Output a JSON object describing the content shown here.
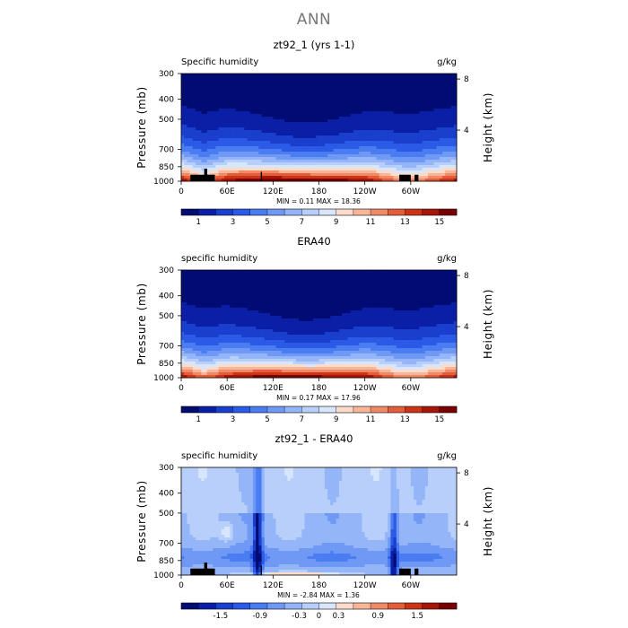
{
  "page": {
    "title": "ANN"
  },
  "colors": {
    "positive_ramp": [
      "#000c73",
      "#0a1fa6",
      "#1a3fcc",
      "#2a5ae6",
      "#4a7cf2",
      "#6f99f5",
      "#94b5f8",
      "#b8cffb",
      "#d8e6fc",
      "#fbdccb",
      "#f7b59a",
      "#f08a66",
      "#e45d3b",
      "#cc3418",
      "#a61509",
      "#7a0000"
    ],
    "difference_ramp": [
      "#000c73",
      "#0a1fa6",
      "#1a3fcc",
      "#2a5ae6",
      "#4a7cf2",
      "#6f99f5",
      "#94b5f8",
      "#b8cffb",
      "#d8e6fc",
      "#fbdccb",
      "#f7b59a",
      "#f08a66",
      "#e45d3b",
      "#cc3418",
      "#a61509",
      "#7a0000"
    ],
    "topography": "#000000"
  },
  "chart_data": [
    {
      "type": "heatmap",
      "title": "zt92_1 (yrs 1-1)",
      "left_label": "Specific humidity",
      "units": "g/kg",
      "ylabel": "Pressure (mb)",
      "ylabel_right": "Height (km)",
      "yticks": [
        "300",
        "400",
        "500",
        "700",
        "850",
        "1000"
      ],
      "yticks_right": [
        "8",
        "4"
      ],
      "xticks": [
        "0",
        "60E",
        "120E",
        "180",
        "120W",
        "60W"
      ],
      "stats": "MIN =     0.11   MAX =   18.36",
      "colorbar_labels": [
        "1",
        "3",
        "5",
        "7",
        "9",
        "11",
        "13",
        "15"
      ],
      "colorbar_range": [
        0,
        16
      ],
      "field": "positive",
      "has_topography": true,
      "surface_q_by_longitude": {
        "0": 15.5,
        "30": 12.0,
        "60": 15.5,
        "120": 17.0,
        "180": 16.5,
        "240": 15.5,
        "280": 12.5,
        "300": 11.5,
        "360": 15.0
      }
    },
    {
      "type": "heatmap",
      "title": "ERA40",
      "left_label": "specific humidity",
      "units": "g/kg",
      "ylabel": "Pressure (mb)",
      "ylabel_right": "Height (km)",
      "yticks": [
        "300",
        "400",
        "500",
        "700",
        "850",
        "1000"
      ],
      "yticks_right": [
        "8",
        "4"
      ],
      "xticks": [
        "0",
        "60E",
        "120E",
        "180",
        "120W",
        "60W"
      ],
      "stats": "MIN =     0.17   MAX =   17.96",
      "colorbar_labels": [
        "1",
        "3",
        "5",
        "7",
        "9",
        "11",
        "13",
        "15"
      ],
      "colorbar_range": [
        0,
        16
      ],
      "field": "positive",
      "has_topography": false,
      "surface_q_by_longitude": {
        "0": 15.5,
        "30": 12.5,
        "60": 15.0,
        "120": 16.5,
        "180": 16.0,
        "240": 15.5,
        "280": 12.5,
        "300": 11.5,
        "360": 15.0
      }
    },
    {
      "type": "heatmap",
      "title": "zt92_1 - ERA40",
      "left_label": "specific humidity",
      "units": "g/kg",
      "ylabel": "Pressure (mb)",
      "ylabel_right": "Height (km)",
      "yticks": [
        "300",
        "400",
        "500",
        "700",
        "850",
        "1000"
      ],
      "yticks_right": [
        "8",
        "4"
      ],
      "xticks": [
        "0",
        "60E",
        "120E",
        "180",
        "120W",
        "60W"
      ],
      "stats": "MIN =    -2.84   MAX =    1.36",
      "colorbar_labels": [
        "-1.5",
        "-0.9",
        "-0.3",
        "0",
        "0.3",
        "0.9",
        "1.5"
      ],
      "colorbar_range": [
        -2.1,
        2.1
      ],
      "field": "difference",
      "has_topography": true
    }
  ]
}
